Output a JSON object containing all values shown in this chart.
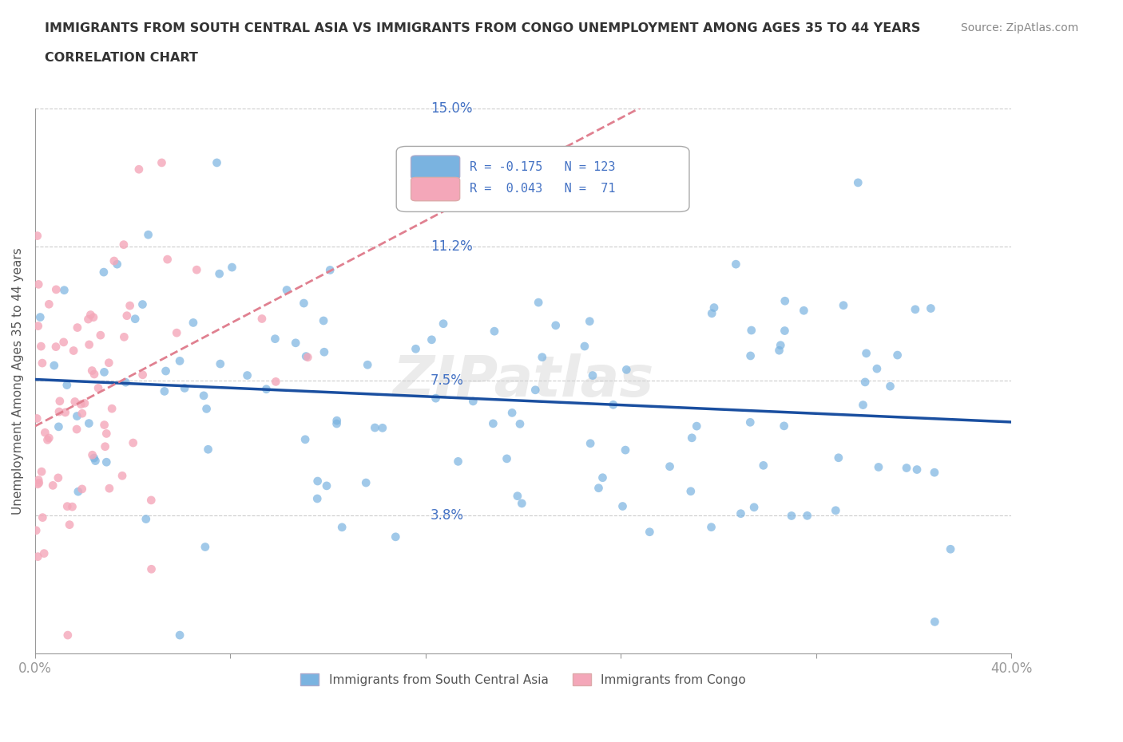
{
  "title_line1": "IMMIGRANTS FROM SOUTH CENTRAL ASIA VS IMMIGRANTS FROM CONGO UNEMPLOYMENT AMONG AGES 35 TO 44 YEARS",
  "title_line2": "CORRELATION CHART",
  "source_text": "Source: ZipAtlas.com",
  "ylabel": "Unemployment Among Ages 35 to 44 years",
  "xlabel": "",
  "xlim": [
    0.0,
    0.4
  ],
  "ylim": [
    0.0,
    0.15
  ],
  "xtick_labels": [
    "0.0%",
    "40.0%"
  ],
  "ytick_vals": [
    0.038,
    0.075,
    0.112,
    0.15
  ],
  "ytick_labels": [
    "3.8%",
    "7.5%",
    "11.2%",
    "15.0%"
  ],
  "series1_color": "#7ab3e0",
  "series2_color": "#f4a7b9",
  "trend1_color": "#1a4fa0",
  "trend2_color": "#e08090",
  "R1": -0.175,
  "N1": 123,
  "R2": 0.043,
  "N2": 71,
  "watermark": "ZIPatlas",
  "background_color": "#ffffff",
  "grid_color": "#cccccc",
  "title_color": "#333333",
  "axis_color": "#4472c4",
  "legend_label1": "Immigrants from South Central Asia",
  "legend_label2": "Immigrants from Congo"
}
